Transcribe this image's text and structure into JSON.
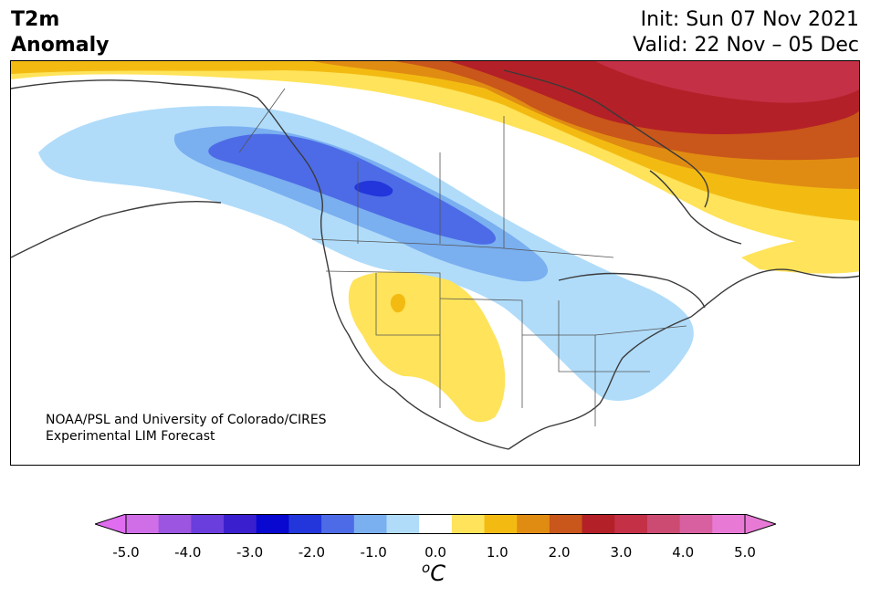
{
  "title": {
    "left_line1": "T2m",
    "left_line2": "Anomaly",
    "right_line1": "Init: Sun 07 Nov 2021",
    "right_line2": "Valid: 22 Nov – 05 Dec"
  },
  "credit": {
    "line1": "NOAA/PSL and University of Colorado/CIRES",
    "line2": "Experimental LIM Forecast"
  },
  "colorbar": {
    "unit_sup": "o",
    "unit_main": "C",
    "ticks": [
      "-5.0",
      "-4.0",
      "-3.0",
      "-2.0",
      "-1.0",
      "0.0",
      "1.0",
      "2.0",
      "3.0",
      "4.0",
      "5.0"
    ],
    "tick_values": [
      -5,
      -4,
      -3,
      -2,
      -1,
      0,
      1,
      2,
      3,
      4,
      5
    ],
    "range": [
      -5,
      5
    ],
    "extend": "both",
    "colors": [
      "#cf6ee6",
      "#9b55e0",
      "#6a3ddd",
      "#3a1fcf",
      "#0808d0",
      "#2236dc",
      "#4d6be6",
      "#7aaff0",
      "#b0dcfa",
      "#ffffff",
      "#ffe35a",
      "#f3bb12",
      "#e08c12",
      "#c9561a",
      "#b42027",
      "#c43046",
      "#cc4b72",
      "#d860a0",
      "#e87ad6"
    ],
    "under_color": "#e06cf0",
    "over_color": "#e87ad6"
  },
  "map": {
    "region": "North America",
    "anomaly_colors": {
      "cold_1": "#b0dcfa",
      "cold_2": "#7aaff0",
      "cold_3": "#4d6be6",
      "cold_4": "#2236dc",
      "warm_1": "#ffe35a",
      "warm_2": "#f3bb12",
      "warm_3": "#e08c12",
      "warm_4": "#c9561a",
      "warm_5": "#b42027",
      "warm_6": "#c43046"
    }
  }
}
